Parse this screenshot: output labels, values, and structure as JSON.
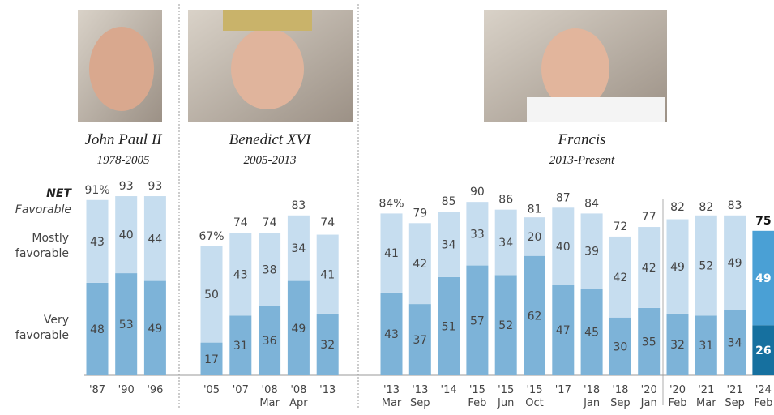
{
  "chart_data": [
    {
      "type": "bar",
      "title": "John Paul II",
      "subtitle": "1978-2005",
      "net_title": "NET",
      "net_subtitle": "Favorable",
      "categories": [
        "'87",
        "'90",
        "'96"
      ],
      "series": [
        {
          "name": "Very favorable",
          "color": "#7db3d8",
          "values": [
            48,
            53,
            49
          ]
        },
        {
          "name": "Mostly favorable",
          "color": "#c6ddef",
          "values": [
            43,
            40,
            44
          ]
        }
      ],
      "totals": [
        91,
        93,
        93
      ],
      "total_labels": [
        "91%",
        "93",
        "93"
      ],
      "ylim": [
        0,
        100
      ]
    },
    {
      "type": "bar",
      "title": "Benedict XVI",
      "subtitle": "2005-2013",
      "categories": [
        "'05",
        "'07",
        "'08 Mar",
        "'08 Apr",
        "'13"
      ],
      "series": [
        {
          "color": "#7db3d8",
          "values": [
            17,
            31,
            36,
            49,
            32
          ]
        },
        {
          "color": "#c6ddef",
          "values": [
            50,
            43,
            38,
            34,
            41
          ]
        }
      ],
      "totals": [
        67,
        74,
        74,
        83,
        74
      ],
      "total_labels": [
        "67%",
        "74",
        "74",
        "83",
        "74"
      ],
      "ylim": [
        0,
        100
      ]
    },
    {
      "type": "bar",
      "title": "Francis",
      "subtitle": "2013-Present",
      "categories": [
        "'13 Mar",
        "'13 Sep",
        "'14",
        "'15 Feb",
        "'15 Jun",
        "'15 Oct",
        "'17",
        "'18 Jan",
        "'18 Sep",
        "'20 Jan",
        "'20 Feb",
        "'21 Mar",
        "'21 Sep",
        "'24 Feb"
      ],
      "series": [
        {
          "color": "#7db3d8",
          "highlight_color": "#16709f",
          "values": [
            43,
            37,
            51,
            57,
            52,
            62,
            47,
            45,
            30,
            35,
            32,
            31,
            34,
            26
          ]
        },
        {
          "color": "#c6ddef",
          "highlight_color": "#4aa0d5",
          "values": [
            41,
            42,
            34,
            33,
            34,
            20,
            40,
            39,
            42,
            42,
            49,
            52,
            49,
            49
          ]
        }
      ],
      "totals": [
        84,
        79,
        85,
        90,
        86,
        81,
        87,
        84,
        72,
        77,
        82,
        82,
        83,
        75
      ],
      "total_labels": [
        "84%",
        "79",
        "85",
        "90",
        "86",
        "81",
        "87",
        "84",
        "72",
        "77",
        "82",
        "82",
        "83",
        "75"
      ],
      "highlight_last": true,
      "ylim": [
        0,
        100
      ]
    }
  ]
}
